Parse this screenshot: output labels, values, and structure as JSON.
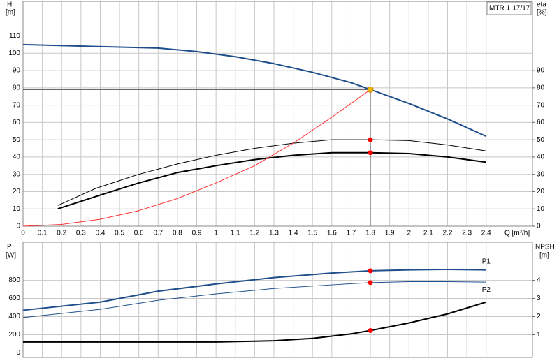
{
  "chart_data": [
    {
      "type": "line",
      "xlim": [
        0,
        2.64
      ],
      "xticks": [
        0,
        0.1,
        0.2,
        0.3,
        0.4,
        0.5,
        0.6,
        0.7,
        0.8,
        0.9,
        1,
        1.1,
        1.2,
        1.3,
        1.4,
        1.5,
        1.6,
        1.7,
        1.8,
        1.9,
        2,
        2.1,
        2.2,
        2.3,
        2.4
      ],
      "xlabel": "Q [m³/h]",
      "ylim": [
        0,
        130
      ],
      "yticks": [
        0,
        10,
        20,
        30,
        40,
        50,
        60,
        70,
        80,
        90,
        100,
        110
      ],
      "ylabel": "H",
      "yunit": "[m]",
      "y2lim": [
        0,
        130
      ],
      "y2ticks": [
        0,
        10,
        20,
        30,
        40,
        50,
        60,
        70,
        80,
        90
      ],
      "y2label": "eta",
      "y2unit": "[%]",
      "grid": true,
      "annotation": "MTR 1-17/17",
      "series": [
        {
          "color": "#1f4e8c",
          "width": 2,
          "x": [
            0,
            0.7,
            0.9,
            1.1,
            1.3,
            1.5,
            1.7,
            1.8,
            2.0,
            2.2,
            2.4
          ],
          "values": [
            105,
            103,
            101,
            98,
            94,
            89,
            83,
            79,
            71,
            62,
            52
          ]
        },
        {
          "color": "#000000",
          "width": 1,
          "axis": "y2",
          "x": [
            0.18,
            0.38,
            0.6,
            0.8,
            1.0,
            1.2,
            1.4,
            1.6,
            1.8,
            2.0,
            2.2,
            2.4
          ],
          "values": [
            12,
            22,
            30,
            36,
            41,
            45,
            48,
            50,
            50,
            49.5,
            47,
            43.5
          ]
        },
        {
          "color": "#000000",
          "width": 2,
          "axis": "y2",
          "x": [
            0.18,
            0.4,
            0.6,
            0.8,
            1.0,
            1.2,
            1.4,
            1.6,
            1.8,
            2.0,
            2.2,
            2.4
          ],
          "values": [
            10,
            18,
            25,
            31,
            35,
            38.5,
            41,
            42.5,
            42.5,
            42,
            40,
            37
          ]
        },
        {
          "color": "#ff3030",
          "width": 1,
          "x": [
            0,
            0.2,
            0.4,
            0.6,
            0.8,
            1.0,
            1.2,
            1.4,
            1.6,
            1.8
          ],
          "values": [
            0,
            1,
            4,
            9,
            16,
            25,
            35,
            48,
            63,
            79
          ]
        }
      ],
      "operating_point": {
        "x": 1.8,
        "y": 79,
        "color": "#f5b800"
      },
      "markers": [
        {
          "x": 1.8,
          "y": 50,
          "axis": "y2"
        },
        {
          "x": 1.8,
          "y": 42.5,
          "axis": "y2"
        }
      ]
    },
    {
      "type": "line",
      "xlim": [
        0,
        2.64
      ],
      "xticks": [
        0,
        0.1,
        0.2,
        0.3,
        0.4,
        0.5,
        0.6,
        0.7,
        0.8,
        0.9,
        1,
        1.1,
        1.2,
        1.3,
        1.4,
        1.5,
        1.6,
        1.7,
        1.8,
        1.9,
        2,
        2.1,
        2.2,
        2.3,
        2.4
      ],
      "ylim": [
        -50,
        1220
      ],
      "yticks": [
        0,
        200,
        400,
        600,
        800
      ],
      "ylabel": "P",
      "yunit": "[W]",
      "y2lim": [
        -0.25,
        6.1
      ],
      "y2ticks": [
        1,
        2,
        3,
        4
      ],
      "y2label": "NPSH",
      "y2unit": "[m]",
      "grid": true,
      "series": [
        {
          "name": "P1",
          "color": "#1f4e8c",
          "width": 2,
          "x": [
            0,
            0.4,
            0.7,
            1.0,
            1.3,
            1.6,
            1.8,
            2.0,
            2.2,
            2.4
          ],
          "values": [
            470,
            560,
            680,
            760,
            830,
            880,
            905,
            915,
            920,
            915
          ]
        },
        {
          "name": "P2",
          "color": "#1f4e8c",
          "width": 1,
          "x": [
            0,
            0.4,
            0.7,
            1.0,
            1.3,
            1.6,
            1.8,
            2.0,
            2.2,
            2.4
          ],
          "values": [
            390,
            480,
            580,
            650,
            710,
            750,
            775,
            785,
            785,
            780
          ]
        },
        {
          "color": "#000000",
          "width": 2,
          "axis": "y2",
          "x": [
            0,
            0.7,
            1.0,
            1.3,
            1.5,
            1.7,
            1.8,
            2.0,
            2.2,
            2.4
          ],
          "values": [
            0.6,
            0.6,
            0.6,
            0.67,
            0.8,
            1.05,
            1.23,
            1.65,
            2.15,
            2.8
          ]
        }
      ],
      "markers": [
        {
          "x": 1.8,
          "y": 905
        },
        {
          "x": 1.8,
          "y": 775
        },
        {
          "x": 1.8,
          "y": 1.23,
          "axis": "y2"
        }
      ]
    }
  ]
}
